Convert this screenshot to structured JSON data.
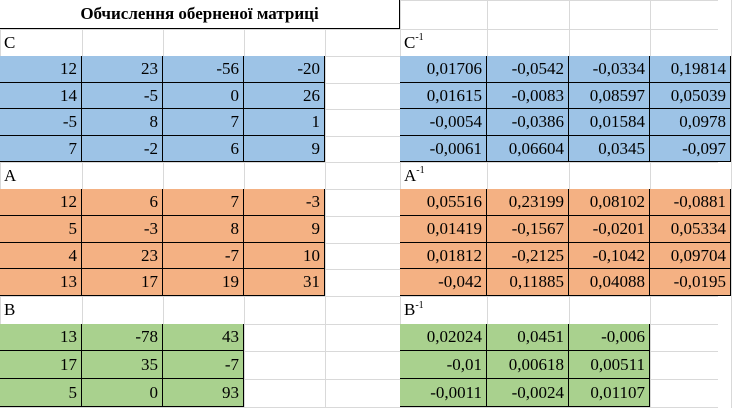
{
  "title": "Обчислення оберненої матриці",
  "sections": [
    {
      "id": "c",
      "label": "C",
      "inv_label_base": "C",
      "inv_label_sup": "-1",
      "color": "#9dc3e6",
      "matrix": [
        [
          "12",
          "23",
          "-56",
          "-20"
        ],
        [
          "14",
          "-5",
          "0",
          "26"
        ],
        [
          "-5",
          "8",
          "7",
          "1"
        ],
        [
          "7",
          "-2",
          "6",
          "9"
        ]
      ],
      "inverse": [
        [
          "0,01706",
          "-0,0542",
          "-0,0334",
          "0,19814"
        ],
        [
          "0,01615",
          "-0,0083",
          "0,08597",
          "0,05039"
        ],
        [
          "-0,0054",
          "-0,0386",
          "0,01584",
          "0,0978"
        ],
        [
          "-0,0061",
          "0,06604",
          "0,0345",
          "-0,097"
        ]
      ]
    },
    {
      "id": "a",
      "label": "A",
      "inv_label_base": "A",
      "inv_label_sup": "-1",
      "color": "#f4b183",
      "matrix": [
        [
          "12",
          "6",
          "7",
          "-3"
        ],
        [
          "5",
          "-3",
          "8",
          "9"
        ],
        [
          "4",
          "23",
          "-7",
          "10"
        ],
        [
          "13",
          "17",
          "19",
          "31"
        ]
      ],
      "inverse": [
        [
          "0,05516",
          "0,23199",
          "0,08102",
          "-0,0881"
        ],
        [
          "0,01419",
          "-0,1567",
          "-0,0201",
          "0,05334"
        ],
        [
          "0,01812",
          "-0,2125",
          "-0,1042",
          "0,09704"
        ],
        [
          "-0,042",
          "0,11885",
          "0,04088",
          "-0,0195"
        ]
      ]
    },
    {
      "id": "b",
      "label": "B",
      "inv_label_base": "B",
      "inv_label_sup": "-1",
      "color": "#a9d18e",
      "matrix": [
        [
          "13",
          "-78",
          "43"
        ],
        [
          "17",
          "35",
          "-7"
        ],
        [
          "5",
          "0",
          "93"
        ]
      ],
      "inverse": [
        [
          "0,02024",
          "0,0451",
          "-0,006"
        ],
        [
          "-0,01",
          "0,00618",
          "0,00511"
        ],
        [
          "-0,0011",
          "-0,0024",
          "0,01107"
        ]
      ]
    }
  ]
}
